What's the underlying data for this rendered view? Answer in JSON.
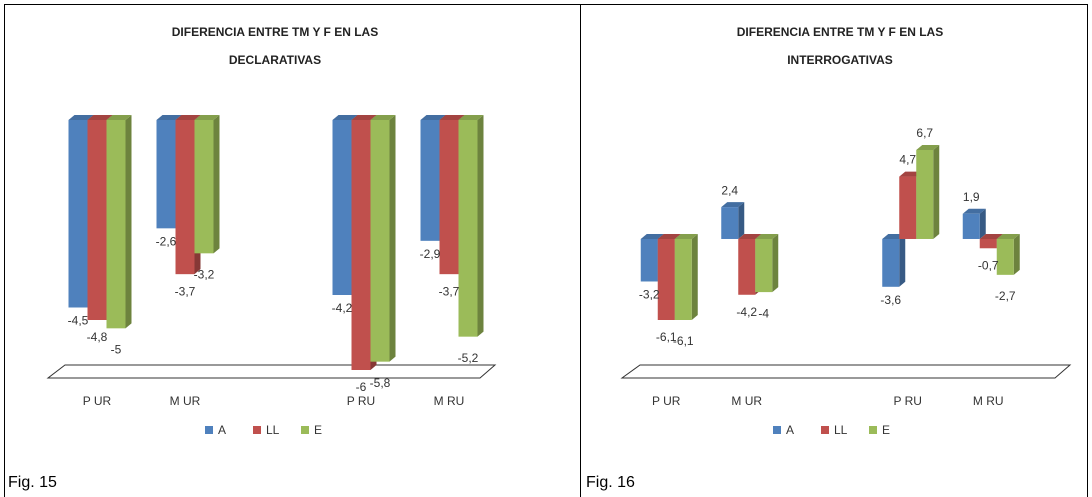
{
  "chart_data": [
    {
      "type": "bar3d",
      "title": "DIFERENCIA ENTRE TM Y F EN LAS DECLARATIVAS",
      "categories": [
        "P UR",
        "M UR",
        null,
        "P RU",
        "M RU"
      ],
      "series": [
        {
          "name": "A",
          "color": "#4f81bd",
          "values": [
            -4.5,
            -2.6,
            null,
            -4.2,
            -2.9
          ],
          "value_labels": [
            "-4,5",
            "-2,6",
            null,
            "-4,2",
            "-2,9"
          ]
        },
        {
          "name": "LL",
          "color": "#c0504d",
          "values": [
            -4.8,
            -3.7,
            null,
            -6,
            -3.7
          ],
          "value_labels": [
            "-4,8",
            "-3,7",
            null,
            "-6",
            "-3,7"
          ]
        },
        {
          "name": "E",
          "color": "#9bbb59",
          "values": [
            -5,
            -3.2,
            null,
            -5.8,
            -5.2
          ],
          "value_labels": [
            "-5",
            "-3,2",
            null,
            "-5,8",
            "-5,2"
          ]
        }
      ]
    },
    {
      "type": "bar3d",
      "title": "DIFERENCIA ENTRE TM Y F EN LAS INTERROGATIVAS",
      "categories": [
        "P UR",
        "M UR",
        null,
        "P RU",
        "M RU"
      ],
      "series": [
        {
          "name": "A",
          "color": "#4f81bd",
          "values": [
            -3.2,
            2.4,
            null,
            -3.6,
            1.9
          ],
          "value_labels": [
            "-3,2",
            "2,4",
            null,
            "-3,6",
            "1,9"
          ]
        },
        {
          "name": "LL",
          "color": "#c0504d",
          "values": [
            -6.1,
            -4.2,
            null,
            4.7,
            -0.7
          ],
          "value_labels": [
            "-6,1",
            "-4,2",
            null,
            "4,7",
            "-0,7"
          ]
        },
        {
          "name": "E",
          "color": "#9bbb59",
          "values": [
            -6.1,
            -4,
            null,
            6.7,
            -2.7
          ],
          "value_labels": [
            "-6,1",
            "-4",
            null,
            "6,7",
            "-2,7"
          ]
        }
      ]
    }
  ],
  "captions": [
    "Fig. 15",
    "Fig. 16"
  ]
}
